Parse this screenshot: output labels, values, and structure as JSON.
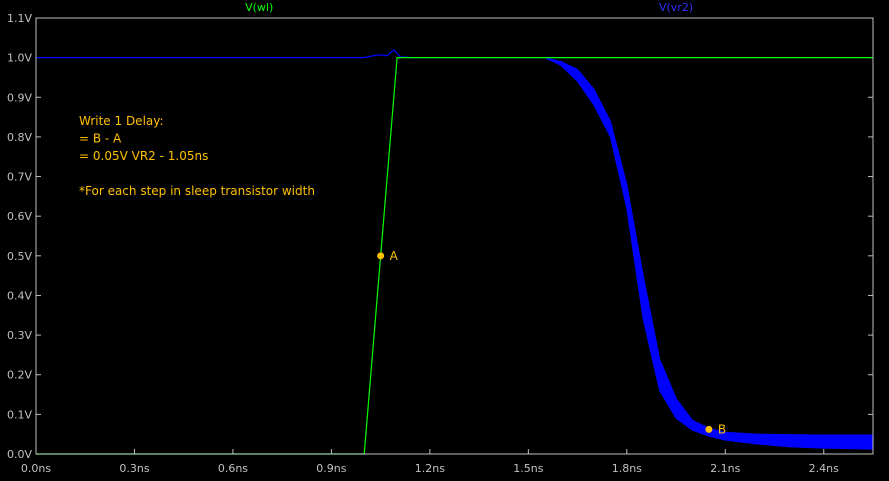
{
  "chart_data": {
    "type": "line",
    "x_unit": "ns",
    "y_unit": "V",
    "xlim": [
      0,
      2.55
    ],
    "ylim": [
      0,
      1.1
    ],
    "x_ticks": [
      0,
      0.3,
      0.6,
      0.9,
      1.2,
      1.5,
      1.8,
      2.1,
      2.4
    ],
    "x_tick_labels": [
      "0.0ns",
      "0.3ns",
      "0.6ns",
      "0.9ns",
      "1.2ns",
      "1.5ns",
      "1.8ns",
      "2.1ns",
      "2.4ns"
    ],
    "y_ticks": [
      0,
      0.1,
      0.2,
      0.3,
      0.4,
      0.5,
      0.6,
      0.7,
      0.8,
      0.9,
      1.0,
      1.1
    ],
    "y_tick_labels": [
      "0.0V",
      "0.1V",
      "0.2V",
      "0.3V",
      "0.4V",
      "0.5V",
      "0.6V",
      "0.7V",
      "0.8V",
      "0.9V",
      "1.0V",
      "1.1V"
    ],
    "series": [
      {
        "name": "V(wl)",
        "color": "#00ff00",
        "x": [
          0,
          1.0,
          1.1,
          2.55
        ],
        "y": [
          0,
          0,
          1.0,
          1.0
        ]
      },
      {
        "name": "V(vr2)",
        "color": "#0000ff",
        "x": [
          0,
          1.0,
          1.04,
          1.07,
          1.09,
          1.11,
          1.15,
          1.55
        ],
        "y": [
          1.0,
          1.0,
          1.007,
          1.005,
          1.02,
          1.002,
          1.0,
          1.0
        ],
        "band": {
          "x": [
            1.55,
            1.6,
            1.65,
            1.7,
            1.75,
            1.8,
            1.85,
            1.9,
            1.95,
            2.0,
            2.05,
            2.1,
            2.2,
            2.3,
            2.4,
            2.5,
            2.55
          ],
          "upper": [
            1.0,
            0.99,
            0.97,
            0.92,
            0.84,
            0.68,
            0.45,
            0.24,
            0.14,
            0.085,
            0.065,
            0.055,
            0.05,
            0.049,
            0.048,
            0.048,
            0.048
          ],
          "lower": [
            1.0,
            0.98,
            0.94,
            0.88,
            0.8,
            0.62,
            0.34,
            0.16,
            0.09,
            0.06,
            0.045,
            0.035,
            0.025,
            0.018,
            0.015,
            0.013,
            0.012
          ]
        }
      }
    ],
    "markers": [
      {
        "label": "A",
        "x": 1.05,
        "y": 0.5,
        "color": "#ffc000"
      },
      {
        "label": "B",
        "x": 2.05,
        "y": 0.062,
        "color": "#ffc000"
      }
    ],
    "annotation_lines": [
      "Write 1 Delay:",
      "= B - A",
      "= 0.05V VR2 - 1.05ns",
      "",
      "*For each step in sleep transistor width"
    ]
  }
}
